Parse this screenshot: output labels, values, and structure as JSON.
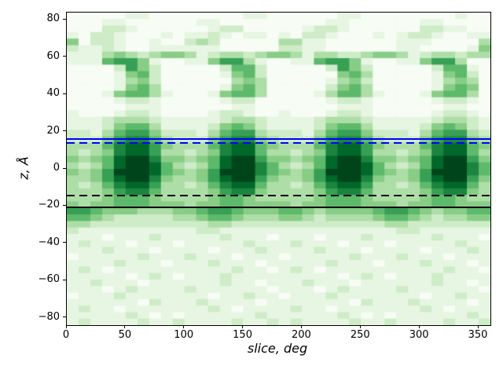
{
  "figure": {
    "background": "#ffffff"
  },
  "chart_data": {
    "type": "heatmap",
    "title": "",
    "xlabel": "slice, deg",
    "ylabel": "z, Å",
    "legend": "none",
    "grid": false,
    "x_axis": {
      "range": [
        0,
        360
      ],
      "ticks": [
        0,
        50,
        100,
        150,
        200,
        250,
        300,
        350
      ],
      "tick_labels": [
        "0",
        "50",
        "100",
        "150",
        "200",
        "250",
        "300",
        "350"
      ]
    },
    "y_axis": {
      "range": [
        -84,
        84
      ],
      "ticks": [
        80,
        60,
        40,
        20,
        0,
        -20,
        -40,
        -60,
        -80
      ],
      "tick_labels": [
        "80",
        "60",
        "40",
        "20",
        "0",
        "−20",
        "−40",
        "−60",
        "−80"
      ]
    },
    "colormap": {
      "name": "Greens",
      "stops": [
        "#f7fcf5",
        "#e5f5e0",
        "#c7e9c0",
        "#a1d99b",
        "#74c476",
        "#41ab5d",
        "#238b45",
        "#006d2c",
        "#00441b"
      ]
    },
    "heatmap": {
      "cols": 36,
      "rows": 48,
      "col_width_deg": 10,
      "row_height_angstrom": 3.5,
      "value_scale": [
        0,
        9
      ],
      "description": "Intensity digits 0 (lightest) to 9 (darkest green). Rows run top (z=+84 A) to bottom (z=-84 A); 36 columns span 0-360 deg. Four dense blobs repeat every 90 deg centered near 55, 145, 235, 325 deg between z=+20 and z=-14.",
      "values": [
        "000001100000000110000001100000000100",
        "000110000001100000000011000000110000",
        "000221000000122000001221000000221100",
        "102210001011210110102210001012210011",
        "402210010023200000331100000011100003",
        "211210011111100000221100000011000014",
        "111343234431233234431332234431233233",
        "111566410011466310011566410011466300",
        "000026420000025520000026420000025510",
        "000014520000014520000004530000014520",
        "000013420000003430000013420000013430",
        "000014530000014530000024530000014540",
        "000145531000145530000135531000145530",
        "000012210000012200000012210000012210",
        "000001110000001100000001110000001100",
        "100012210000122100100012210000012210",
        "111233321111123321111233321111123321",
        "111245531111245421111245531111245421",
        "221356642221356632221356642221356632",
        "222467753222467743222467753222467743",
        "333578864333578854333578864333578854",
        "323478863323478853323478863323478853",
        "434589974434589964434589974434589964",
        "323589985323589975323589985323589975",
        "434699985434699975434699985434699975",
        "334689974334689964334689974334689964",
        "323578863323578853323578863323578853",
        "333467753333467743333467753333467743",
        "333455543333455433333455543333455433",
        "434455544434455444434455544434455444",
        "665444333445665444554344445665434455",
        "554322222334554333443233334554323344",
        "332222222222332222222222222332222222",
        "211111111112211111111111111122111111",
        "111011121111121110111011121111121110",
        "121110111011111211121110111011111211",
        "111211101111011121111211101111011121",
        "011111211121110111011111211121110111",
        "111121110111211101111121110111211101",
        "121011111111112110121011111111112110",
        "111110121011121111111110121011121111",
        "112111011111121101112111011111121101",
        "111012111121111110111012111121111110",
        "011121111111011211011121111111011211",
        "111111021112111101111111021112111101",
        "121101111111210111121101111111210111",
        "111112101011111121111112101011111121",
        "121111211211112112121111211211112112"
      ]
    },
    "hlines": [
      {
        "z": 16,
        "color": "#0000ff",
        "style": "solid",
        "name": "upper-solid-blue"
      },
      {
        "z": 14,
        "color": "#0000ff",
        "style": "dashed",
        "name": "upper-dashed-blue"
      },
      {
        "z": -14.5,
        "color": "#000000",
        "style": "dashed",
        "name": "lower-dashed-black"
      },
      {
        "z": -20.5,
        "color": "#000000",
        "style": "solid",
        "name": "lower-solid-black"
      }
    ]
  }
}
